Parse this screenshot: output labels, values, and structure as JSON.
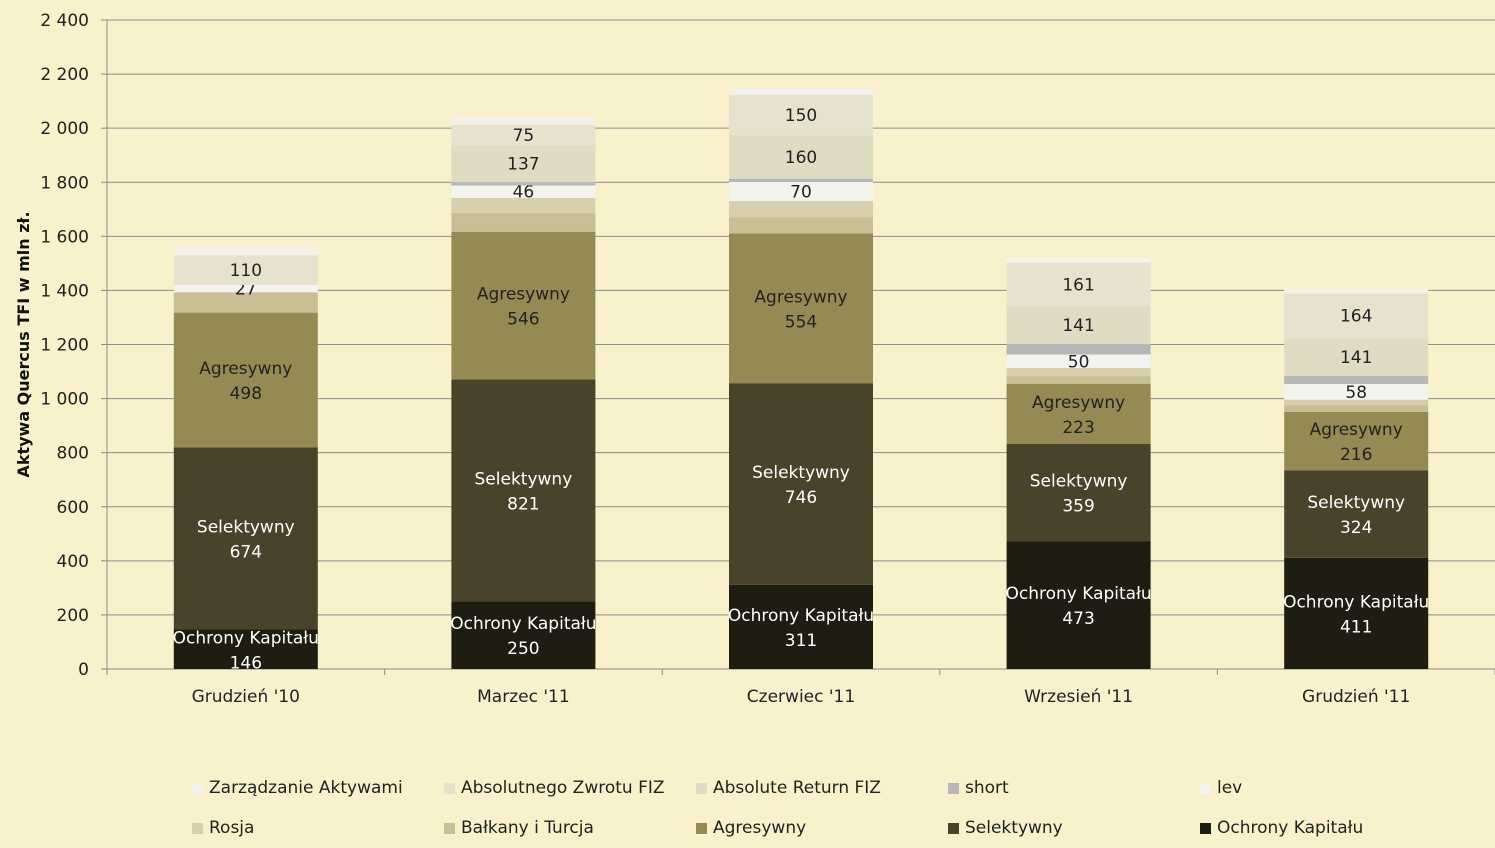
{
  "chart_data": {
    "type": "bar",
    "stacked": true,
    "ylabel": "Aktywa Quercus TFI w mln zł.",
    "ylim": [
      0,
      2400
    ],
    "yticks": [
      "0",
      "200",
      "400",
      "600",
      "800",
      "1 000",
      "1 200",
      "1 400",
      "1 600",
      "1 800",
      "2 000",
      "2 200",
      "2 400"
    ],
    "grid": true,
    "legend_position": "bottom",
    "categories": [
      "Grudzień '10",
      "Marzec '11",
      "Czerwiec '11",
      "Wrzesień '11",
      "Grudzień '11"
    ],
    "series": [
      {
        "name": "Ochrony Kapitału",
        "color": "#1f1c12",
        "label_color": "#ffffff",
        "values": [
          146,
          250,
          311,
          473,
          411
        ],
        "labels": [
          "146",
          "250",
          "311",
          "473",
          "411"
        ],
        "label_name": true
      },
      {
        "name": "Selektywny",
        "color": "#4a432b",
        "label_color": "#ffffff",
        "values": [
          674,
          821,
          746,
          359,
          324
        ],
        "labels": [
          "674",
          "821",
          "746",
          "359",
          "324"
        ],
        "label_name": true
      },
      {
        "name": "Agresywny",
        "color": "#958a53",
        "label_color": "#222222",
        "values": [
          498,
          546,
          554,
          223,
          216
        ],
        "labels": [
          "498",
          "546",
          "554",
          "223",
          "216"
        ],
        "label_name": true
      },
      {
        "name": "Bałkany i Turcja",
        "color": "#c9bf96",
        "label_color": "#222222",
        "values": [
          75,
          70,
          60,
          28,
          25
        ],
        "labels": [
          "",
          "",
          "",
          "",
          ""
        ]
      },
      {
        "name": "Rosja",
        "color": "#d8d0ac",
        "label_color": "#222222",
        "values": [
          0,
          55,
          60,
          30,
          20
        ],
        "labels": [
          "",
          "",
          "",
          "",
          ""
        ]
      },
      {
        "name": "lev",
        "color": "#f3f3ef",
        "label_color": "#222222",
        "values": [
          27,
          46,
          70,
          50,
          58
        ],
        "labels": [
          "27",
          "46",
          "70",
          "50",
          "58"
        ]
      },
      {
        "name": "short",
        "color": "#b7b7b9",
        "label_color": "#222222",
        "values": [
          0,
          12,
          12,
          38,
          30
        ],
        "labels": [
          "",
          "",
          "",
          "",
          ""
        ]
      },
      {
        "name": "Absolute Return FIZ",
        "color": "#e0dbc3",
        "label_color": "#222222",
        "values": [
          0,
          137,
          160,
          141,
          141
        ],
        "labels": [
          "",
          "137",
          "160",
          "141",
          "141"
        ]
      },
      {
        "name": "Absolutnego Zwrotu FIZ",
        "color": "#e6e2ce",
        "label_color": "#222222",
        "values": [
          110,
          75,
          150,
          161,
          164
        ],
        "labels": [
          "110",
          "75",
          "150",
          "161",
          "164"
        ]
      },
      {
        "name": "Zarządzanie Aktywami",
        "color": "#f2f1ea",
        "label_color": "#222222",
        "values": [
          30,
          30,
          25,
          15,
          15
        ],
        "labels": [
          "",
          "",
          "",
          "",
          ""
        ]
      }
    ]
  },
  "legend": {
    "rows": [
      [
        {
          "label": "Zarządzanie Aktywami",
          "color": "#f2f1ea"
        },
        {
          "label": "Absolutnego Zwrotu FIZ",
          "color": "#e6e2ce"
        },
        {
          "label": "Absolute Return FIZ",
          "color": "#e0dbc3"
        },
        {
          "label": "short",
          "color": "#b7b7b9"
        },
        {
          "label": "lev",
          "color": "#f3f3ef"
        }
      ],
      [
        {
          "label": "Rosja",
          "color": "#d8d0ac"
        },
        {
          "label": "Bałkany i Turcja",
          "color": "#c9bf96"
        },
        {
          "label": "Agresywny",
          "color": "#958a53"
        },
        {
          "label": "Selektywny",
          "color": "#4a432b"
        },
        {
          "label": "Ochrony Kapitału",
          "color": "#1f1c12"
        }
      ]
    ]
  }
}
